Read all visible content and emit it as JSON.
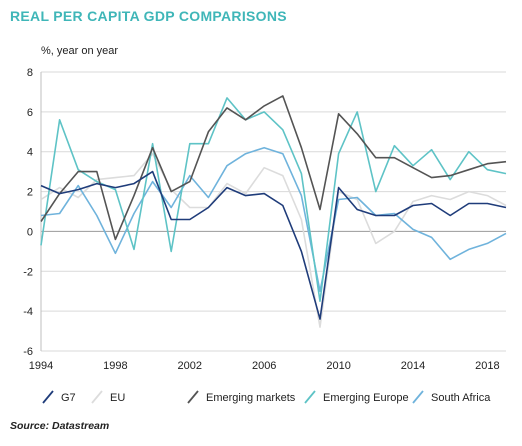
{
  "title": "REAL PER CAPITA GDP COMPARISONS",
  "unit_label": "%, year on year",
  "source": "Source: Datastream",
  "chart_data": {
    "type": "line",
    "x": [
      1994,
      1995,
      1996,
      1997,
      1998,
      1999,
      2000,
      2001,
      2002,
      2003,
      2004,
      2005,
      2006,
      2007,
      2008,
      2009,
      2010,
      2011,
      2012,
      2013,
      2014,
      2015,
      2016,
      2017,
      2018,
      2019
    ],
    "xticks": [
      "1994",
      "1998",
      "2002",
      "2006",
      "2010",
      "2014",
      "2018"
    ],
    "yticks": [
      "8",
      "6",
      "4",
      "2",
      "0",
      "-2",
      "-4",
      "-6"
    ],
    "ylim": [
      -6,
      8
    ],
    "xlim": [
      1994,
      2019
    ],
    "grid": "horizontal",
    "legend_position": "bottom",
    "series": [
      {
        "name": "G7",
        "color": "#1f3c7a",
        "values": [
          2.3,
          1.9,
          2.1,
          2.4,
          2.2,
          2.4,
          3.0,
          0.6,
          0.6,
          1.2,
          2.2,
          1.8,
          1.9,
          1.3,
          -1.0,
          -4.4,
          2.2,
          1.1,
          0.8,
          0.8,
          1.3,
          1.4,
          0.8,
          1.4,
          1.4,
          1.2
        ]
      },
      {
        "name": "EU",
        "color": "#dcdcdc",
        "values": [
          1.6,
          2.2,
          1.7,
          2.6,
          2.7,
          2.8,
          3.9,
          2.1,
          1.2,
          1.2,
          2.4,
          1.9,
          3.2,
          2.8,
          0.6,
          -4.8,
          2.0,
          1.6,
          -0.6,
          0.0,
          1.5,
          1.8,
          1.6,
          2.0,
          1.8,
          1.3
        ]
      },
      {
        "name": "Emerging markets",
        "color": "#545454",
        "values": [
          0.5,
          1.9,
          3.0,
          3.0,
          -0.4,
          1.8,
          4.2,
          2.0,
          2.5,
          5.0,
          6.2,
          5.6,
          6.3,
          6.8,
          4.2,
          1.1,
          5.9,
          4.9,
          3.7,
          3.7,
          3.2,
          2.7,
          2.8,
          3.1,
          3.4,
          3.5
        ]
      },
      {
        "name": "Emerging Europe",
        "color": "#5ec3c6",
        "values": [
          -0.7,
          5.6,
          3.1,
          2.5,
          2.1,
          -0.9,
          4.4,
          -1.0,
          4.4,
          4.4,
          6.7,
          5.6,
          6.0,
          5.1,
          2.9,
          -3.5,
          3.9,
          6.0,
          2.0,
          4.3,
          3.3,
          4.1,
          2.6,
          4.0,
          3.1,
          2.9
        ]
      },
      {
        "name": "South Africa",
        "color": "#6fb3dc",
        "values": [
          0.8,
          0.9,
          2.3,
          0.8,
          -1.1,
          0.9,
          2.5,
          1.2,
          2.8,
          1.7,
          3.3,
          3.9,
          4.2,
          3.9,
          1.8,
          -3.0,
          1.6,
          1.7,
          0.8,
          0.9,
          0.1,
          -0.3,
          -1.4,
          -0.9,
          -0.6,
          -0.1
        ]
      }
    ]
  }
}
